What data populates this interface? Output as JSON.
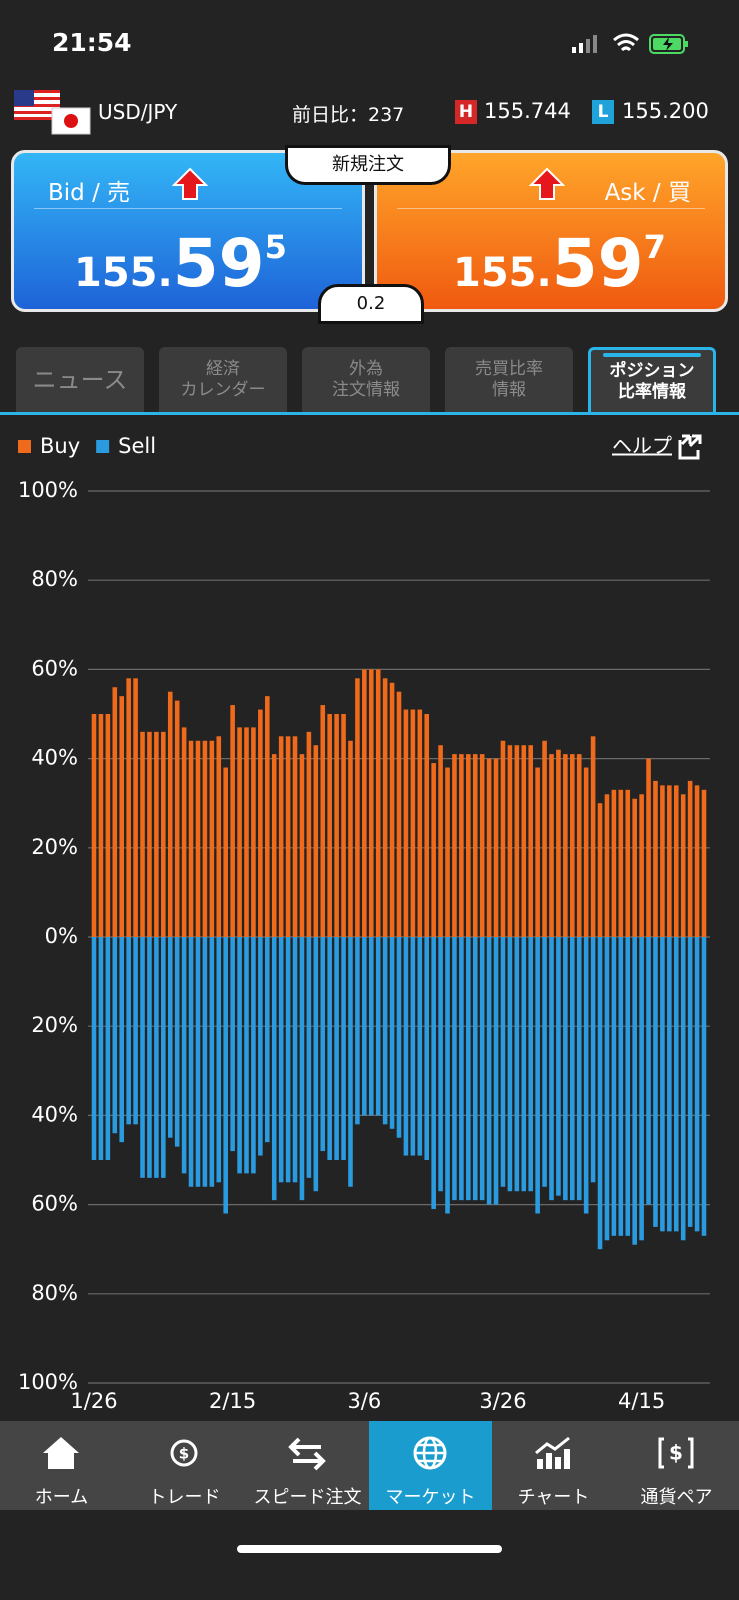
{
  "status": {
    "time": "21:54"
  },
  "header": {
    "pair": "USD/JPY",
    "change": "前日比：237",
    "high_label": "H",
    "high": "155.744",
    "low_label": "L",
    "low": "155.200"
  },
  "quote": {
    "bid_label": "Bid / 売",
    "ask_label": "Ask / 買",
    "new_order": "新規注文",
    "spread": "0.2",
    "bid": {
      "lead": "155.",
      "big": "59",
      "small": "5"
    },
    "ask": {
      "lead": "155.",
      "big": "59",
      "small": "7"
    }
  },
  "tabs": [
    [
      "ニュース"
    ],
    [
      "経済",
      "カレンダー"
    ],
    [
      "外為",
      "注文情報"
    ],
    [
      "売買比率",
      "情報"
    ],
    [
      "ポジション",
      "比率情報"
    ]
  ],
  "help": "ヘルプ",
  "nav": [
    "ホーム",
    "トレード",
    "スピード注文",
    "マーケット",
    "チャート",
    "通貨ペア"
  ],
  "chart_data": {
    "type": "bar",
    "categories": [
      "1/26",
      null,
      null,
      null,
      null,
      null,
      null,
      null,
      null,
      null,
      null,
      null,
      null,
      null,
      null,
      null,
      null,
      null,
      null,
      null,
      "2/15",
      null,
      null,
      null,
      null,
      null,
      null,
      null,
      null,
      null,
      null,
      null,
      null,
      null,
      null,
      null,
      null,
      null,
      null,
      "3/6",
      null,
      null,
      null,
      null,
      null,
      null,
      null,
      null,
      null,
      null,
      null,
      null,
      null,
      null,
      null,
      null,
      null,
      null,
      null,
      "3/26",
      null,
      null,
      null,
      null,
      null,
      null,
      null,
      null,
      null,
      null,
      null,
      null,
      null,
      null,
      null,
      null,
      null,
      null,
      null,
      "4/15",
      null,
      null,
      null,
      null,
      null,
      null,
      null,
      null,
      null
    ],
    "series": [
      {
        "name": "Buy",
        "color": "#f06a1c",
        "values": [
          50,
          50,
          50,
          56,
          54,
          58,
          58,
          46,
          46,
          46,
          46,
          55,
          53,
          47,
          44,
          44,
          44,
          44,
          45,
          38,
          52,
          47,
          47,
          47,
          51,
          54,
          41,
          45,
          45,
          45,
          41,
          46,
          43,
          52,
          50,
          50,
          50,
          44,
          58,
          60,
          60,
          60,
          58,
          57,
          55,
          51,
          51,
          51,
          50,
          39,
          43,
          38,
          41,
          41,
          41,
          41,
          41,
          40,
          40,
          44,
          43,
          43,
          43,
          43,
          38,
          44,
          41,
          42,
          41,
          41,
          41,
          38,
          45,
          30,
          32,
          33,
          33,
          33,
          31,
          32,
          40,
          35,
          34,
          34,
          34,
          32,
          35,
          34,
          33
        ]
      },
      {
        "name": "Sell",
        "color": "#2b9be0",
        "values": [
          -50,
          -50,
          -50,
          -44,
          -46,
          -42,
          -42,
          -54,
          -54,
          -54,
          -54,
          -45,
          -47,
          -53,
          -56,
          -56,
          -56,
          -56,
          -55,
          -62,
          -48,
          -53,
          -53,
          -53,
          -49,
          -46,
          -59,
          -55,
          -55,
          -55,
          -59,
          -54,
          -57,
          -48,
          -50,
          -50,
          -50,
          -56,
          -42,
          -40,
          -40,
          -40,
          -42,
          -43,
          -45,
          -49,
          -49,
          -49,
          -50,
          -61,
          -57,
          -62,
          -59,
          -59,
          -59,
          -59,
          -59,
          -60,
          -60,
          -56,
          -57,
          -57,
          -57,
          -57,
          -62,
          -56,
          -59,
          -58,
          -59,
          -59,
          -59,
          -62,
          -55,
          -70,
          -68,
          -67,
          -67,
          -67,
          -69,
          -68,
          -60,
          -65,
          -66,
          -66,
          -66,
          -68,
          -65,
          -66,
          -67
        ]
      }
    ],
    "ylim": [
      -100,
      100
    ],
    "yticks": [
      {
        "value": 100,
        "label": "100%"
      },
      {
        "value": 80,
        "label": "80%"
      },
      {
        "value": 60,
        "label": "60%"
      },
      {
        "value": 40,
        "label": "40%"
      },
      {
        "value": 20,
        "label": "20%"
      },
      {
        "value": 0,
        "label": "0%"
      },
      {
        "value": -20,
        "label": "20%"
      },
      {
        "value": -40,
        "label": "40%"
      },
      {
        "value": -60,
        "label": "60%"
      },
      {
        "value": -80,
        "label": "80%"
      },
      {
        "value": -100,
        "label": "100%"
      }
    ],
    "grid": true,
    "legend": "top-left"
  }
}
